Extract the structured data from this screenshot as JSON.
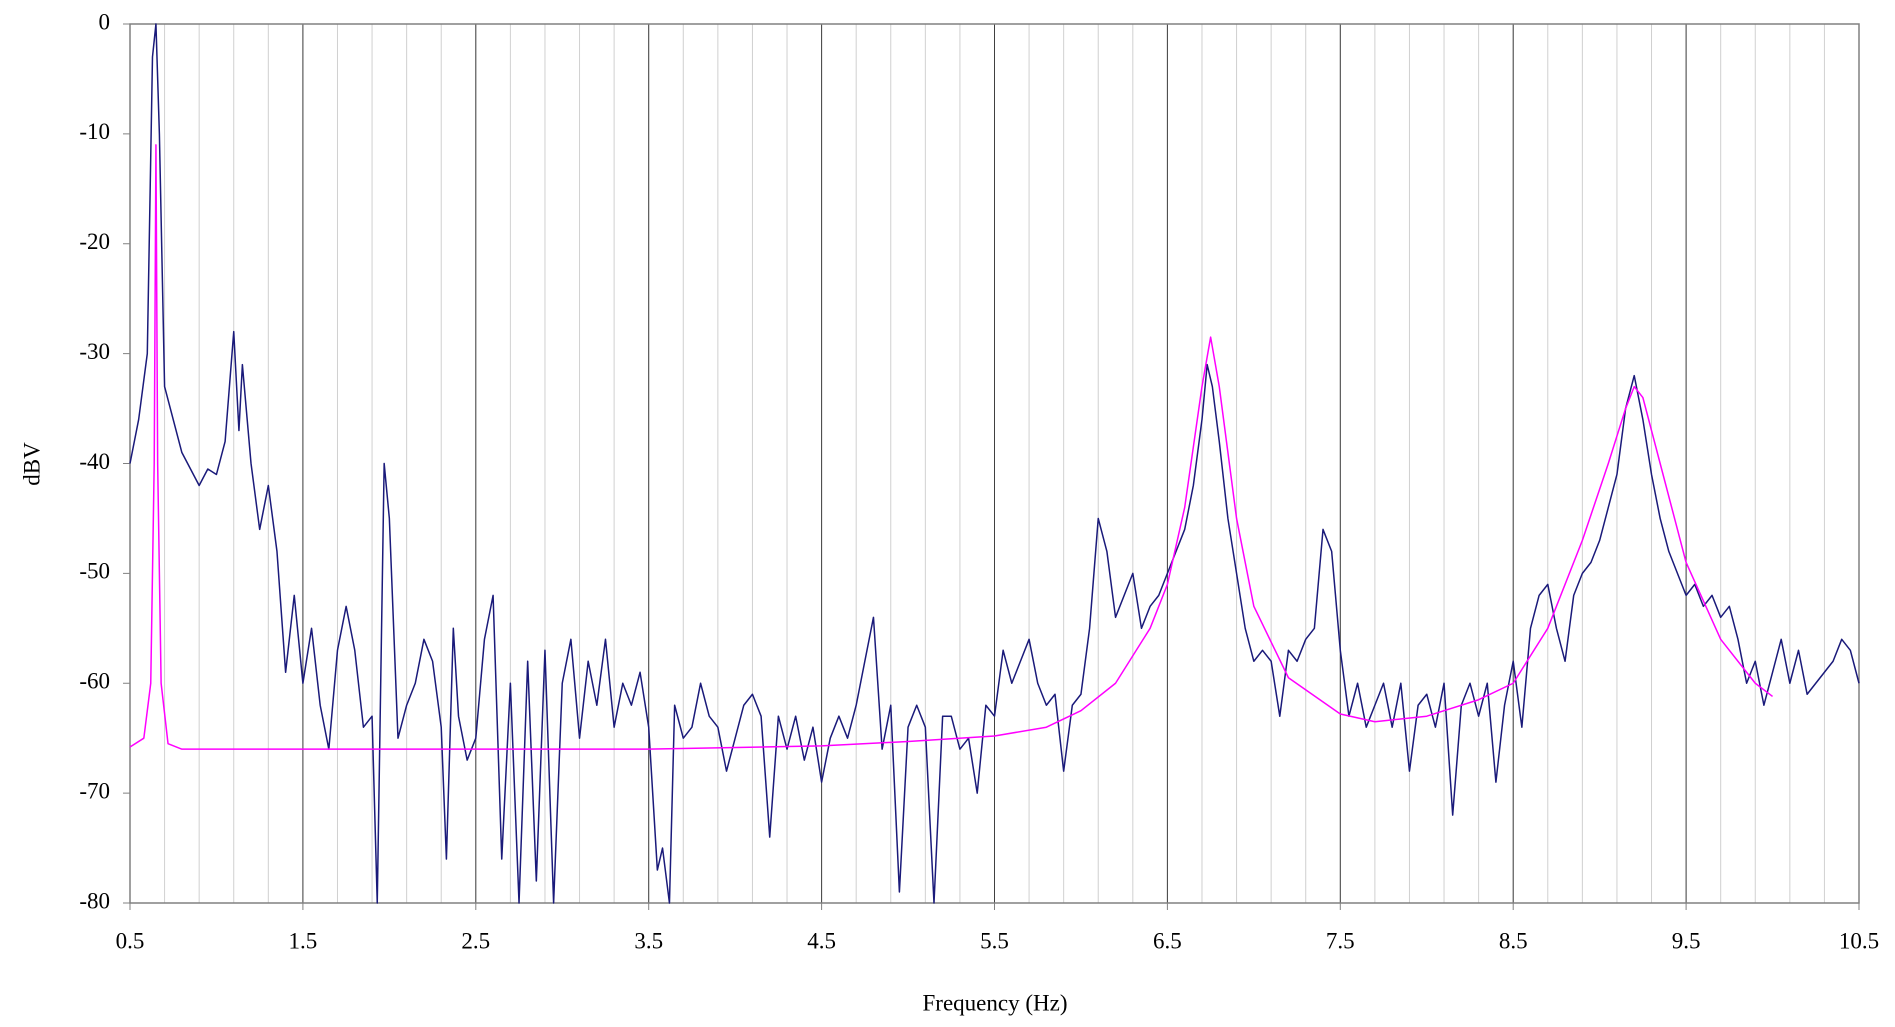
{
  "chart_data": {
    "type": "line",
    "x_label": "Frequency (Hz)",
    "y_label": "dBV",
    "xlim": [
      0.5,
      10.5
    ],
    "xticks": [
      0.5,
      1.5,
      2.5,
      3.5,
      4.5,
      5.5,
      6.5,
      7.5,
      8.5,
      9.5,
      10.5
    ],
    "ylim": [
      -80,
      0
    ],
    "yticks": [
      0,
      -10,
      -20,
      -30,
      -40,
      -50,
      -60,
      -70,
      -80
    ],
    "grid": true,
    "minor_x_grid_step": 0.2,
    "series": [
      {
        "color": "#1a1a7a",
        "x": [
          0.5,
          0.55,
          0.6,
          0.63,
          0.65,
          0.67,
          0.7,
          0.8,
          0.9,
          0.95,
          1.0,
          1.05,
          1.1,
          1.13,
          1.15,
          1.2,
          1.25,
          1.3,
          1.35,
          1.4,
          1.45,
          1.5,
          1.55,
          1.6,
          1.65,
          1.7,
          1.75,
          1.8,
          1.85,
          1.9,
          1.93,
          1.97,
          2.0,
          2.05,
          2.1,
          2.15,
          2.2,
          2.25,
          2.3,
          2.33,
          2.37,
          2.4,
          2.45,
          2.5,
          2.55,
          2.6,
          2.65,
          2.7,
          2.75,
          2.8,
          2.85,
          2.9,
          2.95,
          3.0,
          3.05,
          3.1,
          3.15,
          3.2,
          3.25,
          3.3,
          3.35,
          3.4,
          3.45,
          3.5,
          3.55,
          3.58,
          3.62,
          3.65,
          3.7,
          3.75,
          3.8,
          3.85,
          3.9,
          3.95,
          4.0,
          4.05,
          4.1,
          4.15,
          4.2,
          4.25,
          4.3,
          4.35,
          4.4,
          4.45,
          4.5,
          4.55,
          4.6,
          4.65,
          4.7,
          4.75,
          4.8,
          4.85,
          4.9,
          4.95,
          5.0,
          5.05,
          5.1,
          5.15,
          5.2,
          5.25,
          5.3,
          5.35,
          5.4,
          5.45,
          5.5,
          5.55,
          5.6,
          5.65,
          5.7,
          5.75,
          5.8,
          5.85,
          5.9,
          5.95,
          6.0,
          6.05,
          6.1,
          6.15,
          6.2,
          6.25,
          6.3,
          6.35,
          6.4,
          6.45,
          6.5,
          6.55,
          6.6,
          6.65,
          6.7,
          6.73,
          6.76,
          6.8,
          6.85,
          6.9,
          6.95,
          7.0,
          7.05,
          7.1,
          7.15,
          7.2,
          7.25,
          7.3,
          7.35,
          7.4,
          7.45,
          7.5,
          7.55,
          7.6,
          7.65,
          7.7,
          7.75,
          7.8,
          7.85,
          7.9,
          7.95,
          8.0,
          8.05,
          8.1,
          8.15,
          8.2,
          8.25,
          8.3,
          8.35,
          8.4,
          8.45,
          8.5,
          8.55,
          8.6,
          8.65,
          8.7,
          8.75,
          8.8,
          8.85,
          8.9,
          8.95,
          9.0,
          9.05,
          9.1,
          9.15,
          9.2,
          9.25,
          9.3,
          9.35,
          9.4,
          9.45,
          9.5,
          9.55,
          9.6,
          9.65,
          9.7,
          9.75,
          9.8,
          9.85,
          9.9,
          9.95,
          10.0,
          10.05,
          10.1,
          10.15,
          10.2,
          10.25,
          10.3,
          10.35,
          10.4,
          10.45,
          10.5
        ],
        "values": [
          -40,
          -36,
          -30,
          -3,
          0,
          -10,
          -33,
          -39,
          -42,
          -40.5,
          -41,
          -38,
          -28,
          -37,
          -31,
          -40,
          -46,
          -42,
          -48,
          -59,
          -52,
          -60,
          -55,
          -62,
          -66,
          -57,
          -53,
          -57,
          -64,
          -63,
          -80,
          -40,
          -45,
          -65,
          -62,
          -60,
          -56,
          -58,
          -64,
          -76,
          -55,
          -63,
          -67,
          -65,
          -56,
          -52,
          -76,
          -60,
          -80,
          -58,
          -78,
          -57,
          -80,
          -60,
          -56,
          -65,
          -58,
          -62,
          -56,
          -64,
          -60,
          -62,
          -59,
          -64,
          -77,
          -75,
          -80,
          -62,
          -65,
          -64,
          -60,
          -63,
          -64,
          -68,
          -65,
          -62,
          -61,
          -63,
          -74,
          -63,
          -66,
          -63,
          -67,
          -64,
          -69,
          -65,
          -63,
          -65,
          -62,
          -58,
          -54,
          -66,
          -62,
          -79,
          -64,
          -62,
          -64,
          -80,
          -63,
          -63,
          -66,
          -65,
          -70,
          -62,
          -63,
          -57,
          -60,
          -58,
          -56,
          -60,
          -62,
          -61,
          -68,
          -62,
          -61,
          -55,
          -45,
          -48,
          -54,
          -52,
          -50,
          -55,
          -53,
          -52,
          -50,
          -48,
          -46,
          -42,
          -36,
          -31,
          -33,
          -38,
          -45,
          -50,
          -55,
          -58,
          -57,
          -58,
          -63,
          -57,
          -58,
          -56,
          -55,
          -46,
          -48,
          -57,
          -63,
          -60,
          -64,
          -62,
          -60,
          -64,
          -60,
          -68,
          -62,
          -61,
          -64,
          -60,
          -72,
          -62,
          -60,
          -63,
          -60,
          -69,
          -62,
          -58,
          -64,
          -55,
          -52,
          -51,
          -55,
          -58,
          -52,
          -50,
          -49,
          -47,
          -44,
          -41,
          -35,
          -32,
          -36,
          -41,
          -45,
          -48,
          -50,
          -52,
          -51,
          -53,
          -52,
          -54,
          -53,
          -56,
          -60,
          -58,
          -62,
          -59,
          -56,
          -60,
          -57,
          -61,
          -60,
          -59,
          -58,
          -56,
          -57,
          -60
        ]
      },
      {
        "color": "#ff00ff",
        "x": [
          0.5,
          0.58,
          0.62,
          0.64,
          0.65,
          0.66,
          0.68,
          0.72,
          0.8,
          1.5,
          2.5,
          3.5,
          4.5,
          5.0,
          5.5,
          5.8,
          6.0,
          6.2,
          6.4,
          6.5,
          6.6,
          6.7,
          6.75,
          6.8,
          6.9,
          7.0,
          7.2,
          7.5,
          7.7,
          8.0,
          8.3,
          8.5,
          8.7,
          8.9,
          9.05,
          9.15,
          9.2,
          9.25,
          9.35,
          9.5,
          9.7,
          9.9,
          10.0
        ],
        "values": [
          -65.8,
          -65,
          -60,
          -40,
          -11,
          -40,
          -60,
          -65.5,
          -66,
          -66,
          -66,
          -66,
          -65.7,
          -65.3,
          -64.8,
          -64,
          -62.5,
          -60,
          -55,
          -51,
          -44,
          -33,
          -28.5,
          -33,
          -45,
          -53,
          -59.5,
          -62.8,
          -63.5,
          -63,
          -61.5,
          -60,
          -55,
          -47,
          -40,
          -35,
          -33,
          -34,
          -40,
          -49,
          -56,
          -60,
          -61.2
        ]
      }
    ]
  }
}
